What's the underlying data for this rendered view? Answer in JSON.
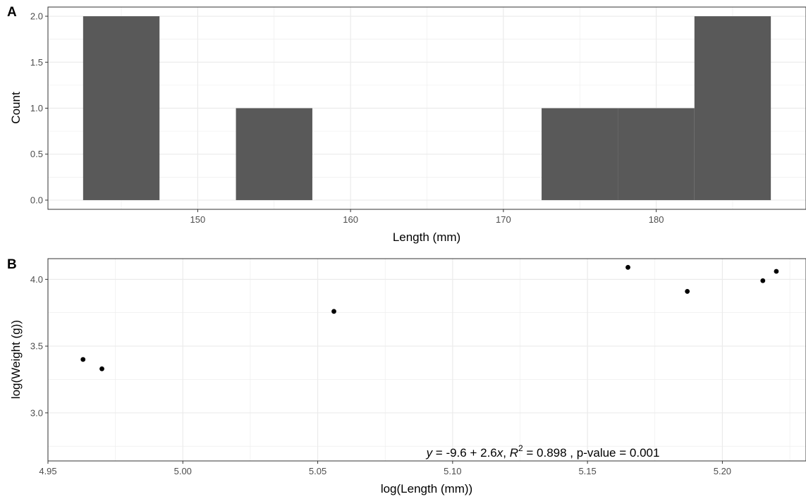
{
  "panels": {
    "a_tag": "A",
    "b_tag": "B"
  },
  "chart_data": [
    {
      "type": "bar",
      "panel": "A",
      "title": "",
      "xlabel": "Length (mm)",
      "ylabel": "Count",
      "bins": [
        {
          "x0": 142.5,
          "x1": 147.5,
          "count": 2
        },
        {
          "x0": 147.5,
          "x1": 152.5,
          "count": 0
        },
        {
          "x0": 152.5,
          "x1": 157.5,
          "count": 1
        },
        {
          "x0": 157.5,
          "x1": 162.5,
          "count": 0
        },
        {
          "x0": 162.5,
          "x1": 167.5,
          "count": 0
        },
        {
          "x0": 167.5,
          "x1": 172.5,
          "count": 0
        },
        {
          "x0": 172.5,
          "x1": 177.5,
          "count": 1
        },
        {
          "x0": 177.5,
          "x1": 182.5,
          "count": 1
        },
        {
          "x0": 182.5,
          "x1": 187.5,
          "count": 2
        }
      ],
      "xlim": [
        140.2,
        189.8
      ],
      "ylim": [
        -0.1,
        2.1
      ],
      "xticks": [
        150,
        160,
        170,
        180
      ],
      "xtick_labels": [
        "150",
        "160",
        "170",
        "180"
      ],
      "yticks": [
        0,
        0.5,
        1,
        1.5,
        2
      ],
      "ytick_labels": [
        "0.0",
        "0.5",
        "1.0",
        "1.5",
        "2.0"
      ],
      "grid": true,
      "colors": {
        "bar": "#595959",
        "grid": "#ebebeb",
        "border": "#333333"
      }
    },
    {
      "type": "scatter",
      "panel": "B",
      "title": "",
      "xlabel": "log(Length (mm))",
      "ylabel": "log(Weight (g))",
      "points": [
        {
          "x": 4.963,
          "y": 3.4
        },
        {
          "x": 4.97,
          "y": 3.33
        },
        {
          "x": 5.056,
          "y": 3.76
        },
        {
          "x": 5.165,
          "y": 4.09
        },
        {
          "x": 5.187,
          "y": 3.91
        },
        {
          "x": 5.215,
          "y": 3.99
        },
        {
          "x": 5.22,
          "y": 4.06
        }
      ],
      "xlim": [
        4.95,
        5.231
      ],
      "ylim": [
        2.64,
        4.155
      ],
      "xticks": [
        4.95,
        5.0,
        5.05,
        5.1,
        5.15,
        5.2
      ],
      "xtick_labels": [
        "4.95",
        "5.00",
        "5.05",
        "5.10",
        "5.15",
        "5.20"
      ],
      "yticks": [
        3.0,
        3.5,
        4.0
      ],
      "ytick_labels": [
        "3.0",
        "3.5",
        "4.0"
      ],
      "grid": true,
      "annotation": {
        "y_var": "y",
        "eq_sign": " = ",
        "intercept": "-9.6",
        "plus": " + ",
        "slope": "2.6",
        "x_var": "x",
        "r2_prefix": ", ",
        "r2_var": "R",
        "r2_sup": "2",
        "r2_value": " = 0.898 , p-value = 0.001"
      },
      "colors": {
        "point": "#000000",
        "grid": "#ebebeb",
        "border": "#333333"
      }
    }
  ]
}
